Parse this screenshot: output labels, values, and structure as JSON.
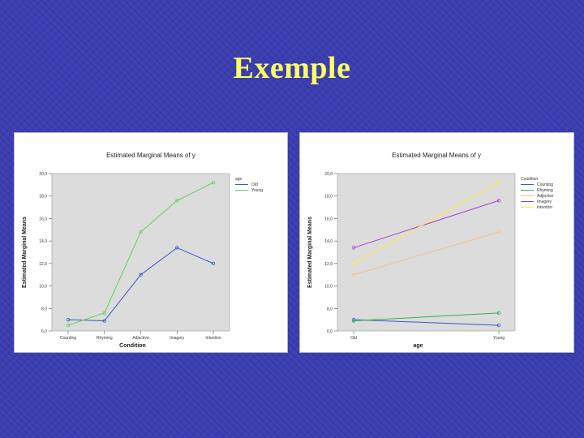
{
  "slide": {
    "title": "Exemple"
  },
  "chart_data": [
    {
      "type": "line",
      "title": "Estimated Marginal Means of y",
      "xlabel": "Condition",
      "ylabel": "Estimated Marginal Means",
      "categories": [
        "Counting",
        "Rhyming",
        "Adjective",
        "Imagery",
        "Intention"
      ],
      "ylim": [
        6,
        20
      ],
      "yticks": [
        "6,0",
        "8,0",
        "10,0",
        "12,0",
        "14,0",
        "16,0",
        "18,0",
        "20,0"
      ],
      "legend_title": "age",
      "legend_position": "right",
      "series": [
        {
          "name": "Old",
          "color": "#3b58c8",
          "values": [
            7.0,
            6.9,
            11.0,
            13.4,
            12.0
          ]
        },
        {
          "name": "Young",
          "color": "#5cd35c",
          "values": [
            6.5,
            7.6,
            14.8,
            17.6,
            19.2
          ]
        }
      ]
    },
    {
      "type": "line",
      "title": "Estimated Marginal Means of y",
      "xlabel": "age",
      "ylabel": "Estimated Marginal Means",
      "categories": [
        "Old",
        "Young"
      ],
      "ylim": [
        6,
        20
      ],
      "yticks": [
        "6,0",
        "8,0",
        "10,0",
        "12,0",
        "14,0",
        "16,0",
        "18,0",
        "20,0"
      ],
      "legend_title": "Condition",
      "legend_position": "right",
      "series": [
        {
          "name": "Counting",
          "color": "#3b58c8",
          "values": [
            7.0,
            6.5
          ]
        },
        {
          "name": "Rhyming",
          "color": "#2fb05c",
          "values": [
            6.9,
            7.6
          ]
        },
        {
          "name": "Adjective",
          "color": "#f2c38a",
          "values": [
            11.0,
            14.8
          ]
        },
        {
          "name": "Imagery",
          "color": "#a040c8",
          "values": [
            13.4,
            17.6
          ]
        },
        {
          "name": "Intention",
          "color": "#ffee44",
          "values": [
            12.0,
            19.2
          ]
        }
      ]
    }
  ]
}
